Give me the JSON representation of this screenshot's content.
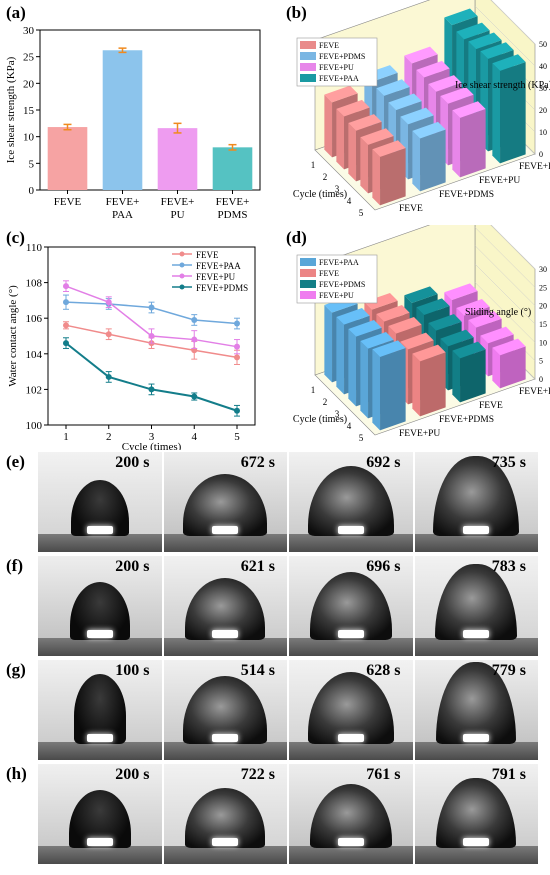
{
  "panels": {
    "a": "(a)",
    "b": "(b)",
    "c": "(c)",
    "d": "(d)",
    "e": "(e)",
    "f": "(f)",
    "g": "(g)",
    "h": "(h)"
  },
  "chart_data": [
    {
      "id": "a",
      "type": "bar",
      "categories": [
        "FEVE",
        "FEVE+\nPAA",
        "FEVE+\nPU",
        "FEVE+\nPDMS"
      ],
      "values": [
        11.8,
        26.2,
        11.6,
        8.0
      ],
      "errors": [
        0.5,
        0.4,
        0.9,
        0.5
      ],
      "ylabel": "Ice shear strength (KPa)",
      "ylim": [
        0,
        30
      ],
      "yticks": [
        0,
        5,
        10,
        15,
        20,
        25,
        30
      ],
      "colors": [
        "#f6a3a3",
        "#8cc4ec",
        "#ee9cf0",
        "#55c2c2"
      ],
      "error_color": "#f08a1e"
    },
    {
      "id": "b",
      "type": "bar",
      "subtype": "3d",
      "series": [
        {
          "name": "FEVE",
          "color": "#e98a8a",
          "values": [
            25,
            24,
            23,
            22,
            22
          ]
        },
        {
          "name": "FEVE+PDMS",
          "color": "#7ab6e3",
          "values": [
            28,
            27,
            26,
            25,
            24
          ]
        },
        {
          "name": "FEVE+PU",
          "color": "#e786e9",
          "values": [
            30,
            29,
            28,
            28,
            27
          ]
        },
        {
          "name": "FEVE+PAA",
          "color": "#1a9aa3",
          "values": [
            41,
            40,
            41,
            42,
            42
          ]
        }
      ],
      "zlabel": "Ice shear strength (KPa)",
      "zticks": [
        0,
        10,
        20,
        30,
        40,
        50
      ],
      "xlabel": "Cycle (times)",
      "xticks": [
        "1",
        "2",
        "3",
        "4",
        "5"
      ],
      "depth_labels": [
        "FEVE+PAA",
        "FEVE+PU",
        "FEVE+PDMS",
        "FEVE"
      ]
    },
    {
      "id": "c",
      "type": "line",
      "x": [
        1,
        2,
        3,
        4,
        5
      ],
      "series": [
        {
          "name": "FEVE",
          "color": "#f08b8b",
          "values": [
            105.6,
            105.1,
            104.6,
            104.2,
            103.8
          ],
          "errors": [
            0.2,
            0.3,
            0.3,
            0.5,
            0.4
          ]
        },
        {
          "name": "FEVE+PAA",
          "color": "#6fa8dc",
          "values": [
            106.9,
            106.8,
            106.6,
            105.9,
            105.7
          ],
          "errors": [
            0.4,
            0.3,
            0.3,
            0.3,
            0.3
          ]
        },
        {
          "name": "FEVE+PU",
          "color": "#e27fe6",
          "values": [
            107.8,
            106.9,
            105.0,
            104.8,
            104.4
          ],
          "errors": [
            0.3,
            0.3,
            0.4,
            0.5,
            0.4
          ]
        },
        {
          "name": "FEVE+PDMS",
          "color": "#137d8a",
          "values": [
            104.6,
            102.7,
            102.0,
            101.6,
            100.8
          ],
          "errors": [
            0.3,
            0.3,
            0.3,
            0.2,
            0.3
          ]
        }
      ],
      "xlabel": "Cycle (times)",
      "ylabel": "Water contact angle (°)",
      "ylim": [
        100,
        110
      ],
      "yticks": [
        100,
        102,
        104,
        106,
        108,
        110
      ],
      "xticks": [
        1,
        2,
        3,
        4,
        5
      ],
      "legend": "top-right"
    },
    {
      "id": "d",
      "type": "bar",
      "subtype": "3d",
      "series": [
        {
          "name": "FEVE+PAA",
          "color": "#5aa6d8",
          "values": [
            19,
            19,
            19,
            19,
            20
          ]
        },
        {
          "name": "FEVE",
          "color": "#ec8484",
          "values": [
            16,
            16,
            16,
            15,
            15
          ]
        },
        {
          "name": "FEVE+PDMS",
          "color": "#127e86",
          "values": [
            14,
            14,
            13,
            12,
            12
          ]
        },
        {
          "name": "FEVE+PU",
          "color": "#ef7cef",
          "values": [
            11,
            10,
            10,
            9,
            9
          ]
        }
      ],
      "zlabel": "Sliding angle (°)",
      "zticks": [
        0,
        5,
        10,
        15,
        20,
        25,
        30
      ],
      "xlabel": "Cycle (times)",
      "xticks": [
        "1",
        "2",
        "3",
        "4",
        "5"
      ],
      "depth_labels": [
        "FEVE+PAA",
        "FEVE",
        "FEVE+PDMS",
        "FEVE+PU"
      ]
    }
  ],
  "photos": [
    {
      "id": "e",
      "times": [
        "200 s",
        "672 s",
        "692 s",
        "735 s"
      ]
    },
    {
      "id": "f",
      "times": [
        "200 s",
        "621 s",
        "696 s",
        "783 s"
      ]
    },
    {
      "id": "g",
      "times": [
        "100 s",
        "514 s",
        "628 s",
        "779 s"
      ]
    },
    {
      "id": "h",
      "times": [
        "200 s",
        "722 s",
        "761 s",
        "791 s"
      ]
    }
  ]
}
